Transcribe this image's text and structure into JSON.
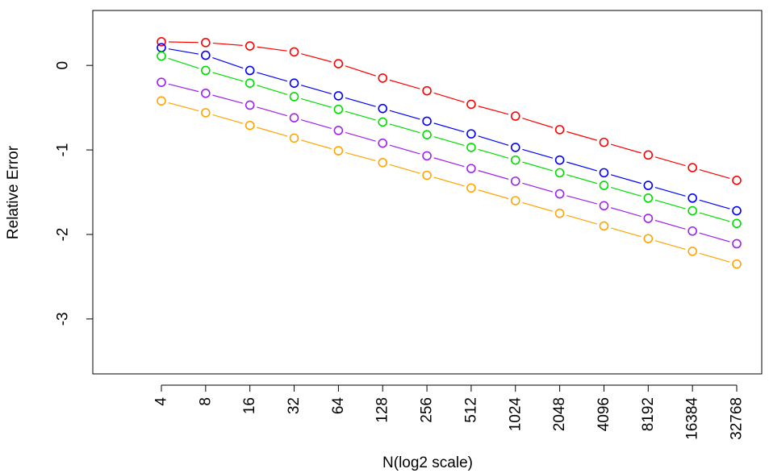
{
  "chart_data": {
    "type": "line",
    "x_scale": "log2",
    "x": [
      4,
      8,
      16,
      32,
      64,
      128,
      256,
      512,
      1024,
      2048,
      4096,
      8192,
      16384,
      32768
    ],
    "x_tick_labels": [
      "4",
      "8",
      "16",
      "32",
      "64",
      "128",
      "256",
      "512",
      "1024",
      "2048",
      "4096",
      "8192",
      "16384",
      "32768"
    ],
    "xlabel": "N(log2 scale)",
    "ylabel": "Relative Error",
    "ylim": [
      -3.65,
      0.65
    ],
    "y_ticks": [
      0,
      -1,
      -2,
      -3
    ],
    "y_tick_labels": [
      "0",
      "-1",
      "-2",
      "-3"
    ],
    "grid": false,
    "legend": "none",
    "markers": "open circles",
    "line_style": "dashed",
    "series": [
      {
        "color": "#ff0000",
        "values": [
          0.28,
          0.27,
          0.23,
          0.16,
          0.02,
          -0.15,
          -0.3,
          -0.46,
          -0.6,
          -0.76,
          -0.91,
          -1.06,
          -1.21,
          -1.36
        ]
      },
      {
        "color": "#0000ff",
        "values": [
          0.21,
          0.12,
          -0.06,
          -0.21,
          -0.36,
          -0.51,
          -0.66,
          -0.81,
          -0.97,
          -1.12,
          -1.27,
          -1.42,
          -1.57,
          -1.72
        ]
      },
      {
        "color": "#00dd00",
        "values": [
          0.11,
          -0.06,
          -0.21,
          -0.37,
          -0.52,
          -0.67,
          -0.82,
          -0.97,
          -1.12,
          -1.27,
          -1.42,
          -1.57,
          -1.72,
          -1.87
        ]
      },
      {
        "color": "#a020f0",
        "values": [
          -0.2,
          -0.33,
          -0.47,
          -0.62,
          -0.77,
          -0.92,
          -1.07,
          -1.22,
          -1.37,
          -1.52,
          -1.66,
          -1.81,
          -1.96,
          -2.11
        ]
      },
      {
        "color": "#ffa500",
        "values": [
          -0.42,
          -0.56,
          -0.71,
          -0.86,
          -1.01,
          -1.15,
          -1.3,
          -1.45,
          -1.6,
          -1.75,
          -1.9,
          -2.05,
          -2.2,
          -2.35
        ]
      }
    ]
  }
}
